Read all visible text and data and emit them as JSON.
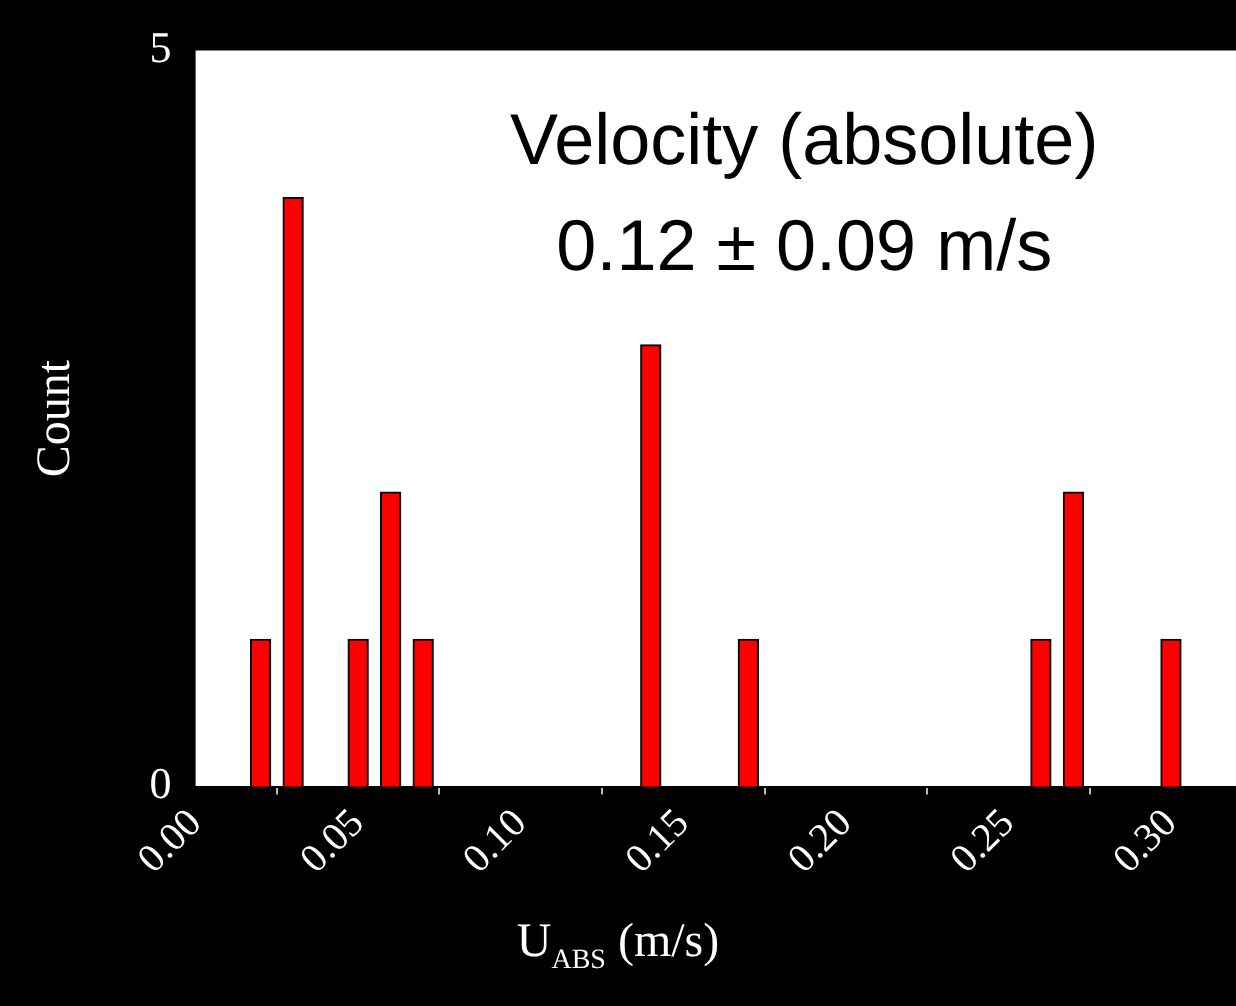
{
  "chart_data": {
    "type": "bar",
    "title": "Velocity (absolute)",
    "subtitle": "0.12 ± 0.09 m/s",
    "xlabel": "U$_{ABS}$ (m/s)",
    "ylabel": "Count",
    "x": [
      0.02,
      0.03,
      0.05,
      0.06,
      0.07,
      0.14,
      0.17,
      0.26,
      0.27,
      0.3
    ],
    "values": [
      1,
      4,
      1,
      2,
      1,
      3,
      1,
      1,
      2,
      1
    ],
    "color": "#ff0000",
    "xlim": [
      0,
      0.32
    ],
    "xticks": [
      {
        "value": 0,
        "label": "0.00"
      },
      {
        "value": 0.05,
        "label": "0.05"
      },
      {
        "value": 0.1,
        "label": "0.10"
      },
      {
        "value": 0.15,
        "label": "0.15"
      },
      {
        "value": 0.2,
        "label": "0.20"
      },
      {
        "value": 0.25,
        "label": "0.25"
      },
      {
        "value": 0.3,
        "label": "0.30"
      }
    ],
    "ylim": [
      0,
      5
    ],
    "yticks": [
      0,
      5
    ],
    "grid": false,
    "legend": false
  }
}
